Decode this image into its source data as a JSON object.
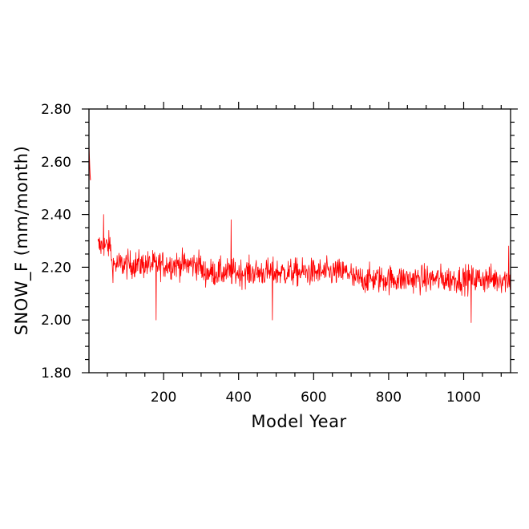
{
  "chart_data": {
    "type": "line",
    "title": "",
    "xlabel": "Model Year",
    "ylabel": "SNOW_F (mm/month)",
    "xlim": [
      1,
      1125
    ],
    "ylim": [
      1.8,
      2.8
    ],
    "x_ticks": [
      200,
      400,
      600,
      800,
      1000
    ],
    "x_tick_labels": [
      "200",
      "400",
      "600",
      "800",
      "1000"
    ],
    "y_ticks": [
      1.8,
      2.0,
      2.2,
      2.4,
      2.6,
      2.8
    ],
    "y_tick_labels": [
      "1.80",
      "2.00",
      "2.20",
      "2.40",
      "2.60",
      "2.80"
    ],
    "grid": false,
    "legend": "none",
    "series": [
      {
        "color": "#ff0000",
        "x_start": 1,
        "x_step": 1,
        "segments": [
          {
            "x_from": 1,
            "x_to": 5,
            "values": [
              2.66,
              2.62,
              2.58,
              2.55,
              2.53
            ]
          },
          {
            "x_from": 25,
            "x_to": 60,
            "approx_mean": 2.28,
            "approx_range": [
              2.17,
              2.4
            ]
          },
          {
            "x_from": 60,
            "x_to": 300,
            "approx_mean": 2.21,
            "approx_range": [
              2.0,
              2.37
            ]
          },
          {
            "x_from": 300,
            "x_to": 700,
            "approx_mean": 2.18,
            "approx_range": [
              2.0,
              2.38
            ]
          },
          {
            "x_from": 700,
            "x_to": 1125,
            "approx_mean": 2.155,
            "approx_range": [
              1.99,
              2.3
            ]
          }
        ],
        "notable_points": [
          {
            "x": 40,
            "y": 2.4
          },
          {
            "x": 180,
            "y": 2.0
          },
          {
            "x": 380,
            "y": 2.38
          },
          {
            "x": 490,
            "y": 2.0
          },
          {
            "x": 1020,
            "y": 1.99
          },
          {
            "x": 1120,
            "y": 2.28
          }
        ]
      }
    ]
  }
}
